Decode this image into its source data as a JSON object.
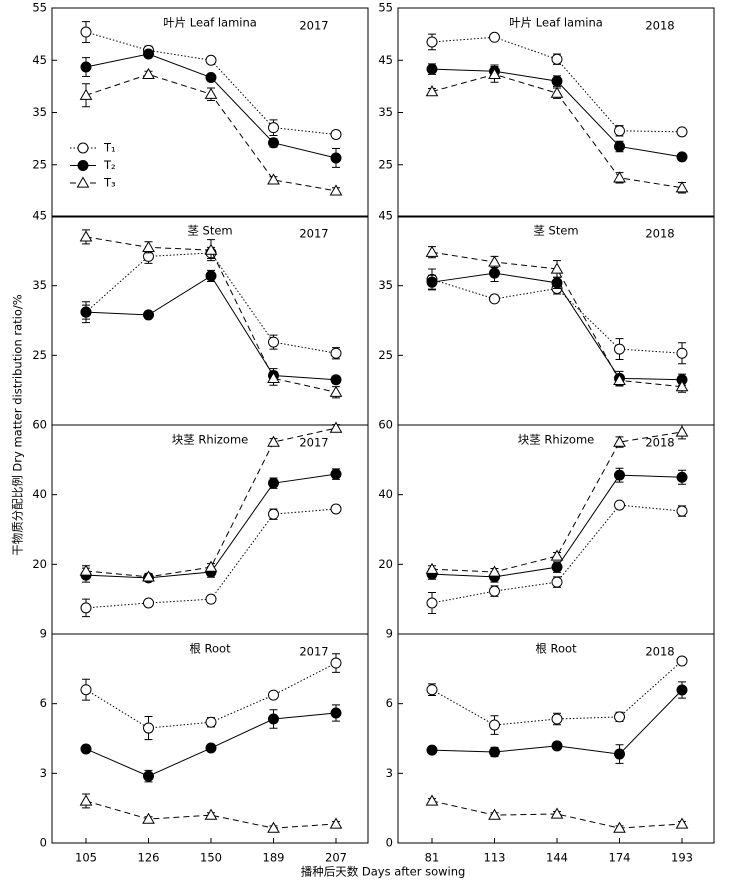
{
  "ylabel": "干物质分配比例 Dry matter distribution ratio/%",
  "xlabel": "播种后天数 Days after sowing",
  "chart_data": [
    {
      "type": "line",
      "title": "叶片 Leaf lamina",
      "annotation": "2017",
      "ylim": [
        15,
        55
      ],
      "yticks": [
        25,
        35,
        45,
        55
      ],
      "legend": "upper left",
      "series": [
        {
          "name": "T₁",
          "color": "#000000",
          "marker": "circle-open",
          "linestyle": "dotted",
          "values": [
            50.4,
            46.9,
            45,
            32.1,
            30.8
          ],
          "errors": [
            2,
            0.8,
            0.6,
            1.5,
            0.6
          ]
        },
        {
          "name": "T₂",
          "color": "#000000",
          "marker": "circle",
          "linestyle": "solid",
          "values": [
            43.7,
            46.2,
            41.7,
            29.2,
            26.3
          ],
          "errors": [
            1.8,
            0.6,
            0.6,
            0.8,
            1.8
          ]
        },
        {
          "name": "T₃",
          "color": "#000000",
          "marker": "triangle-open",
          "linestyle": "dashed",
          "values": [
            38.3,
            42.3,
            38.5,
            22.1,
            20
          ],
          "errors": [
            2.2,
            0.6,
            1.2,
            0.6,
            0.6
          ]
        }
      ]
    },
    {
      "type": "line",
      "title": "叶片 Leaf lamina",
      "annotation": "2018",
      "ylim": [
        15,
        55
      ],
      "yticks": [
        25,
        35,
        45,
        55
      ],
      "series": [
        {
          "color": "#000000",
          "marker": "circle-open",
          "linestyle": "dotted",
          "values": [
            48.5,
            49.4,
            45.2,
            31.5,
            31.3
          ],
          "errors": [
            1.5,
            0.6,
            1,
            1,
            0.6
          ]
        },
        {
          "color": "#000000",
          "marker": "circle",
          "linestyle": "solid",
          "values": [
            43.3,
            42.9,
            41,
            28.5,
            26.5
          ],
          "errors": [
            1,
            1.2,
            1,
            1,
            0.6
          ]
        },
        {
          "color": "#000000",
          "marker": "triangle-open",
          "linestyle": "dashed",
          "values": [
            39,
            42.3,
            38.7,
            22.5,
            20.6
          ],
          "errors": [
            0.6,
            1.5,
            1,
            1,
            1
          ]
        }
      ]
    },
    {
      "type": "line",
      "title": "茎 Stem",
      "annotation": "2017",
      "ylim": [
        15,
        45
      ],
      "yticks": [
        25,
        35,
        45
      ],
      "series": [
        {
          "color": "#000000",
          "marker": "circle-open",
          "linestyle": "dotted",
          "values": [
            31.2,
            39.2,
            39.7,
            26.9,
            25.3
          ],
          "errors": [
            1,
            1,
            0.8,
            1,
            0.8
          ]
        },
        {
          "color": "#000000",
          "marker": "circle",
          "linestyle": "solid",
          "values": [
            31.2,
            30.8,
            36.4,
            22.1,
            21.5
          ],
          "errors": [
            1.5,
            0.5,
            0.8,
            1,
            0.5
          ]
        },
        {
          "color": "#000000",
          "marker": "triangle-open",
          "linestyle": "dashed",
          "values": [
            42,
            40.5,
            40.1,
            21.7,
            19.7
          ],
          "errors": [
            1,
            0.8,
            1.5,
            1,
            0.8
          ]
        }
      ]
    },
    {
      "type": "line",
      "title": "茎 Stem",
      "annotation": "2018",
      "ylim": [
        15,
        45
      ],
      "yticks": [
        25,
        35,
        45
      ],
      "series": [
        {
          "color": "#000000",
          "marker": "circle-open",
          "linestyle": "dotted",
          "values": [
            35.9,
            33.1,
            34.6,
            25.9,
            25.3
          ],
          "errors": [
            1.5,
            0.5,
            0.8,
            1.5,
            1.5
          ]
        },
        {
          "color": "#000000",
          "marker": "circle",
          "linestyle": "solid",
          "values": [
            35.5,
            36.8,
            35.4,
            21.7,
            21.5
          ],
          "errors": [
            1,
            1.2,
            0.8,
            1,
            0.8
          ]
        },
        {
          "color": "#000000",
          "marker": "triangle-open",
          "linestyle": "dashed",
          "values": [
            39.8,
            38.4,
            37.4,
            21.4,
            20.5
          ],
          "errors": [
            0.8,
            0.8,
            1.2,
            0.8,
            0.8
          ]
        }
      ]
    },
    {
      "type": "line",
      "title": "块茎 Rhizome",
      "annotation": "2017",
      "ylim": [
        0,
        60
      ],
      "yticks": [
        20,
        40,
        60
      ],
      "series": [
        {
          "color": "#000000",
          "marker": "circle-open",
          "linestyle": "dotted",
          "values": [
            7.5,
            8.9,
            10,
            34.4,
            35.9
          ],
          "errors": [
            2.5,
            1,
            1,
            1.5,
            1
          ]
        },
        {
          "color": "#000000",
          "marker": "circle",
          "linestyle": "solid",
          "values": [
            16.9,
            16.1,
            17.8,
            43.3,
            45.9
          ],
          "errors": [
            2,
            1,
            1.5,
            1.5,
            1.5
          ]
        },
        {
          "color": "#000000",
          "marker": "triangle-open",
          "linestyle": "dashed",
          "values": [
            18.1,
            16.4,
            19.2,
            55.1,
            59.1
          ],
          "errors": [
            1.5,
            1,
            1,
            1,
            1
          ]
        }
      ]
    },
    {
      "type": "line",
      "title": "块茎 Rhizome",
      "annotation": "2018",
      "ylim": [
        0,
        60
      ],
      "yticks": [
        20,
        40,
        60
      ],
      "series": [
        {
          "color": "#000000",
          "marker": "circle-open",
          "linestyle": "dotted",
          "values": [
            8.9,
            12.3,
            14.9,
            37,
            35.3
          ],
          "errors": [
            3,
            1.5,
            1.5,
            1,
            1.5
          ]
        },
        {
          "color": "#000000",
          "marker": "circle",
          "linestyle": "solid",
          "values": [
            17.2,
            16.4,
            19.2,
            45.6,
            45
          ],
          "errors": [
            1.5,
            1.5,
            1.5,
            2,
            2
          ]
        },
        {
          "color": "#000000",
          "marker": "triangle-open",
          "linestyle": "dashed",
          "values": [
            18.6,
            17.8,
            22.4,
            55.1,
            58
          ],
          "errors": [
            1,
            1,
            1,
            1.5,
            2
          ]
        }
      ]
    },
    {
      "type": "line",
      "title": "根 Root",
      "annotation": "2017",
      "ylim": [
        0,
        9
      ],
      "yticks": [
        0,
        3,
        6,
        9
      ],
      "categories": [
        "105",
        "126",
        "150",
        "189",
        "207"
      ],
      "series": [
        {
          "color": "#000000",
          "marker": "circle-open",
          "linestyle": "dotted",
          "values": [
            6.6,
            4.95,
            5.2,
            6.37,
            7.75
          ],
          "errors": [
            0.45,
            0.5,
            0.2,
            0.15,
            0.4
          ]
        },
        {
          "color": "#000000",
          "marker": "circle",
          "linestyle": "solid",
          "values": [
            4.05,
            2.88,
            4.09,
            5.34,
            5.6
          ],
          "errors": [
            0.15,
            0.25,
            0.1,
            0.4,
            0.35
          ]
        },
        {
          "color": "#000000",
          "marker": "triangle-open",
          "linestyle": "dashed",
          "values": [
            1.81,
            1.03,
            1.2,
            0.64,
            0.82
          ],
          "errors": [
            0.3,
            0.1,
            0.1,
            0.1,
            0.1
          ]
        }
      ]
    },
    {
      "type": "line",
      "title": "根 Root",
      "annotation": "2018",
      "ylim": [
        0,
        9
      ],
      "yticks": [
        0,
        3,
        6,
        9
      ],
      "categories": [
        "81",
        "113",
        "144",
        "174",
        "193"
      ],
      "series": [
        {
          "color": "#000000",
          "marker": "circle-open",
          "linestyle": "dotted",
          "values": [
            6.6,
            5.08,
            5.34,
            5.43,
            7.84
          ],
          "errors": [
            0.25,
            0.4,
            0.25,
            0.2,
            0.1
          ]
        },
        {
          "color": "#000000",
          "marker": "circle",
          "linestyle": "solid",
          "values": [
            4,
            3.92,
            4.18,
            3.83,
            6.59
          ],
          "errors": [
            0.1,
            0.2,
            0.1,
            0.4,
            0.35
          ]
        },
        {
          "color": "#000000",
          "marker": "triangle-open",
          "linestyle": "dashed",
          "values": [
            1.81,
            1.2,
            1.25,
            0.64,
            0.82
          ],
          "errors": [
            0.1,
            0.1,
            0.1,
            0.1,
            0.1
          ]
        }
      ]
    }
  ]
}
